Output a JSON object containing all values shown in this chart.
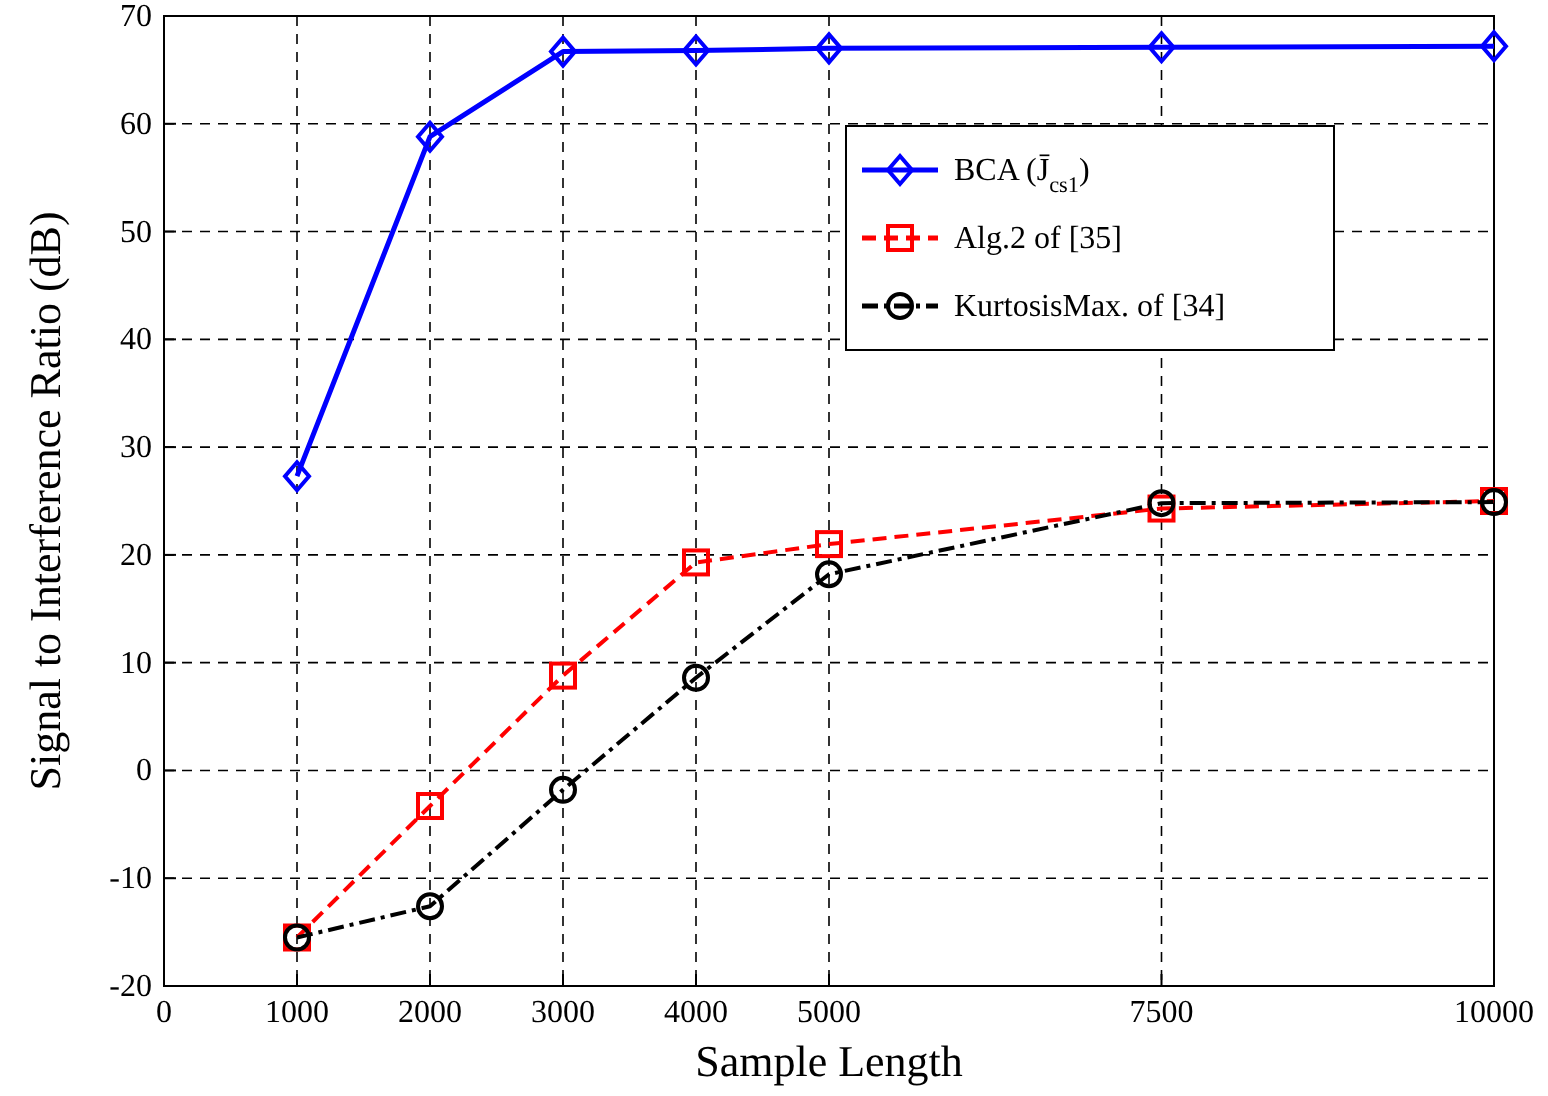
{
  "chart_data": {
    "type": "line",
    "xlabel": "Sample Length",
    "ylabel": "Signal to Interference Ratio (dB)",
    "x": [
      1000,
      2000,
      3000,
      4000,
      5000,
      7500,
      10000
    ],
    "series": [
      {
        "name": "BCA (J̄$_{cs1}$)",
        "color": "#0000ff",
        "marker": "diamond",
        "line_style": "solid",
        "values": [
          27.3,
          58.8,
          66.7,
          66.8,
          67,
          67.1,
          67.2
        ]
      },
      {
        "name": "Alg.2 of [35]",
        "color": "#ff0000",
        "marker": "square",
        "line_style": "dashed",
        "values": [
          -15.5,
          -3.3,
          8.8,
          19.3,
          21,
          24.3,
          25
        ]
      },
      {
        "name": "KurtosisMax. of [34]",
        "color": "#000000",
        "marker": "circle",
        "line_style": "dotted",
        "values": [
          -15.5,
          -12.6,
          -1.8,
          8.6,
          18.2,
          24.8,
          24.9
        ]
      }
    ],
    "xlim": [
      0,
      10000
    ],
    "xticks": [
      0,
      1000,
      2000,
      3000,
      4000,
      5000,
      7500,
      10000
    ],
    "ylim": [
      -20,
      70
    ],
    "yticks": [
      -20,
      -10,
      0,
      10,
      20,
      30,
      40,
      50,
      60,
      70
    ],
    "grid": true,
    "legend": "top right"
  }
}
